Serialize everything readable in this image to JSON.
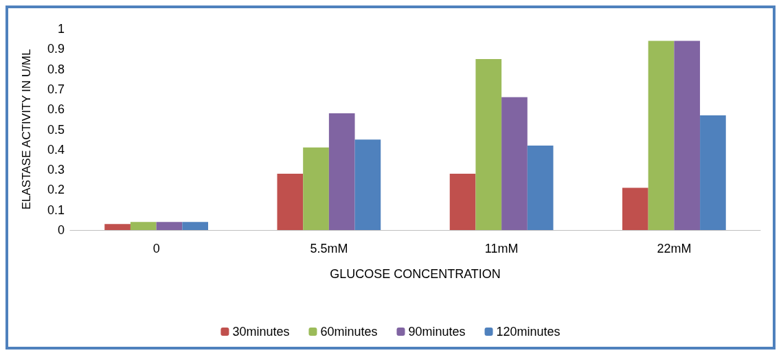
{
  "chart_data": {
    "type": "bar",
    "xlabel": "GLUCOSE CONCENTRATION",
    "ylabel": "ELASTASE ACTIVITY IN U/ML",
    "categories": [
      "0",
      "5.5mM",
      "11mM",
      "22mM"
    ],
    "series": [
      {
        "name": "30minutes",
        "color": "#c0504d",
        "values": [
          0.03,
          0.28,
          0.28,
          0.21
        ]
      },
      {
        "name": "60minutes",
        "color": "#9bbb59",
        "values": [
          0.04,
          0.41,
          0.85,
          0.94
        ]
      },
      {
        "name": "90minutes",
        "color": "#8064a2",
        "values": [
          0.04,
          0.58,
          0.66,
          0.94
        ]
      },
      {
        "name": "120minutes",
        "color": "#4f81bd",
        "values": [
          0.04,
          0.45,
          0.42,
          0.57
        ]
      }
    ],
    "ylim": [
      0,
      1
    ],
    "yticks": [
      0,
      0.1,
      0.2,
      0.3,
      0.4,
      0.5,
      0.6,
      0.7,
      0.8,
      0.9,
      1
    ],
    "grid": false,
    "legend": "bottom"
  }
}
